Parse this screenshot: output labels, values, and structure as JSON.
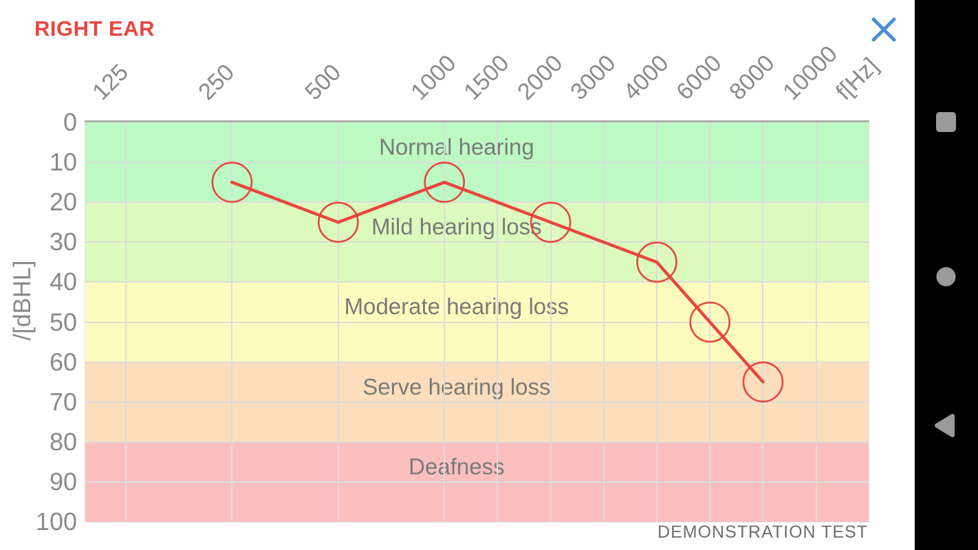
{
  "header": {
    "title": "RIGHT EAR",
    "close_icon": "x-close",
    "close_color": "#4A90D2",
    "title_color": "#E8463E"
  },
  "chart_data": {
    "type": "line",
    "xlabel": "f[Hz]",
    "ylabel": "/[dBHL]",
    "categories": [
      125,
      250,
      500,
      1000,
      1500,
      2000,
      3000,
      4000,
      6000,
      8000,
      10000
    ],
    "y_ticks": [
      0,
      10,
      20,
      30,
      40,
      50,
      60,
      70,
      80,
      90,
      100
    ],
    "ylim": [
      0,
      100
    ],
    "grid": true,
    "legend_position": "none",
    "series": [
      {
        "name": "Right ear threshold",
        "color": "#E8463E",
        "marker": "circle",
        "points": [
          {
            "freq": 250,
            "db": 15
          },
          {
            "freq": 500,
            "db": 25
          },
          {
            "freq": 1000,
            "db": 15
          },
          {
            "freq": 2000,
            "db": 25
          },
          {
            "freq": 4000,
            "db": 35
          },
          {
            "freq": 6000,
            "db": 50
          },
          {
            "freq": 8000,
            "db": 65
          }
        ]
      }
    ],
    "zones": [
      {
        "label": "Normal hearing",
        "from": 0,
        "to": 20,
        "color": "#BDFAC3"
      },
      {
        "label": "Mild hearing loss",
        "from": 20,
        "to": 40,
        "color": "#DDFABE"
      },
      {
        "label": "Moderate hearing loss",
        "from": 40,
        "to": 60,
        "color": "#FEFBBE"
      },
      {
        "label": "Serve hearing loss",
        "from": 60,
        "to": 80,
        "color": "#FCDEBC"
      },
      {
        "label": "Deafness",
        "from": 80,
        "to": 100,
        "color": "#FCBFBF"
      }
    ],
    "footer_note": "DEMONSTRATION TEST",
    "grid_color": "#DCDCDC"
  },
  "nav_bar": {
    "icon_color": "#9A9A9A",
    "buttons": [
      {
        "name": "recents",
        "icon": "square-icon"
      },
      {
        "name": "home",
        "icon": "circle-icon"
      },
      {
        "name": "back",
        "icon": "triangle-left-icon"
      }
    ]
  }
}
